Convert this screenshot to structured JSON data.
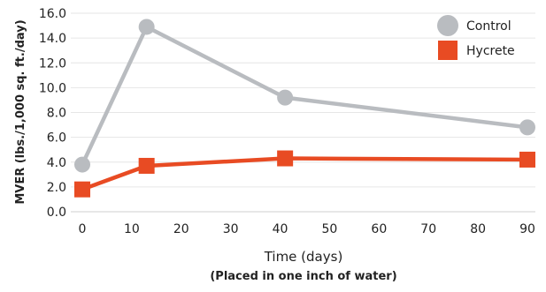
{
  "chart_data": {
    "type": "line",
    "xlabel": "Time (days)",
    "xlabel_sub": "(Placed in one inch of water)",
    "ylabel": "MVER (lbs./1,000 sq. ft./day)",
    "xlim": [
      0,
      90
    ],
    "ylim": [
      0,
      16
    ],
    "xticks": [
      "0",
      "10",
      "20",
      "30",
      "40",
      "50",
      "60",
      "70",
      "80",
      "90"
    ],
    "yticks": [
      "0.0",
      "2.0",
      "4.0",
      "6.0",
      "8.0",
      "10.0",
      "12.0",
      "14.0",
      "16.0"
    ],
    "grid": "horizontal",
    "legend_position": "top-right",
    "series": [
      {
        "name": "Control",
        "color": "#b9bcc0",
        "marker": "circle",
        "points": [
          {
            "x": 0,
            "y": 3.8
          },
          {
            "x": 13,
            "y": 14.9
          },
          {
            "x": 41,
            "y": 9.2
          },
          {
            "x": 90,
            "y": 6.8
          }
        ]
      },
      {
        "name": "Hycrete",
        "color": "#e84b23",
        "marker": "square",
        "points": [
          {
            "x": 0,
            "y": 1.8
          },
          {
            "x": 13,
            "y": 3.7
          },
          {
            "x": 41,
            "y": 4.3
          },
          {
            "x": 90,
            "y": 4.2
          }
        ]
      }
    ]
  }
}
